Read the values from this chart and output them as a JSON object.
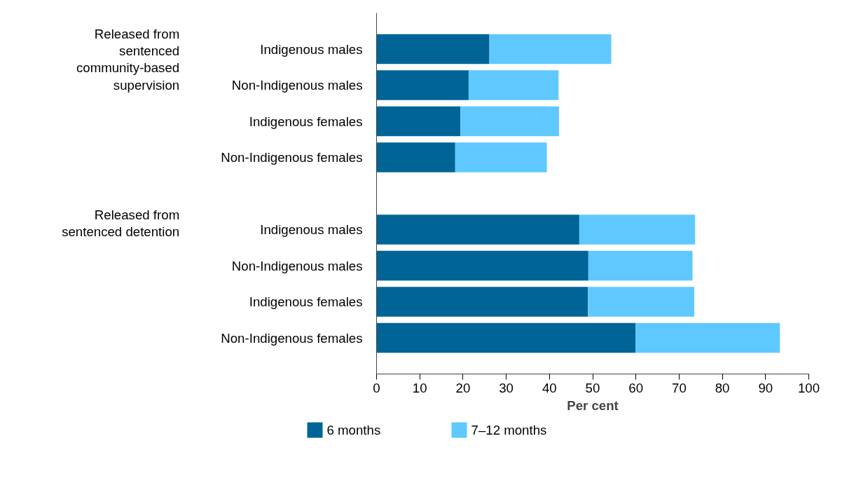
{
  "chart_data": {
    "type": "bar",
    "orientation": "horizontal",
    "stacked": true,
    "categories": [
      "Indigenous males",
      "Non-Indigenous males",
      "Indigenous females",
      "Non-Indigenous females",
      "Indigenous males",
      "Non-Indigenous males",
      "Indigenous females",
      "Non-Indigenous females"
    ],
    "series": [
      {
        "name": "6 months",
        "color": "#006496",
        "values": [
          26.1,
          21.3,
          19.4,
          18.2,
          46.9,
          49.0,
          48.9,
          59.9
        ]
      },
      {
        "name": "7–12 months",
        "color": "#5fc8ff",
        "values": [
          28.2,
          20.8,
          22.8,
          21.2,
          26.8,
          24.1,
          24.6,
          33.4
        ]
      }
    ],
    "annotations": [
      "Released from\nsentenced\ncommunity-based\nsupervision",
      "Released from\nsentenced detention"
    ],
    "xlabel": "Per cent",
    "xlim": [
      0,
      100
    ],
    "xticks": [
      0,
      10,
      20,
      30,
      40,
      50,
      60,
      70,
      80,
      90,
      100
    ],
    "grid": false,
    "legend": "bottom"
  }
}
